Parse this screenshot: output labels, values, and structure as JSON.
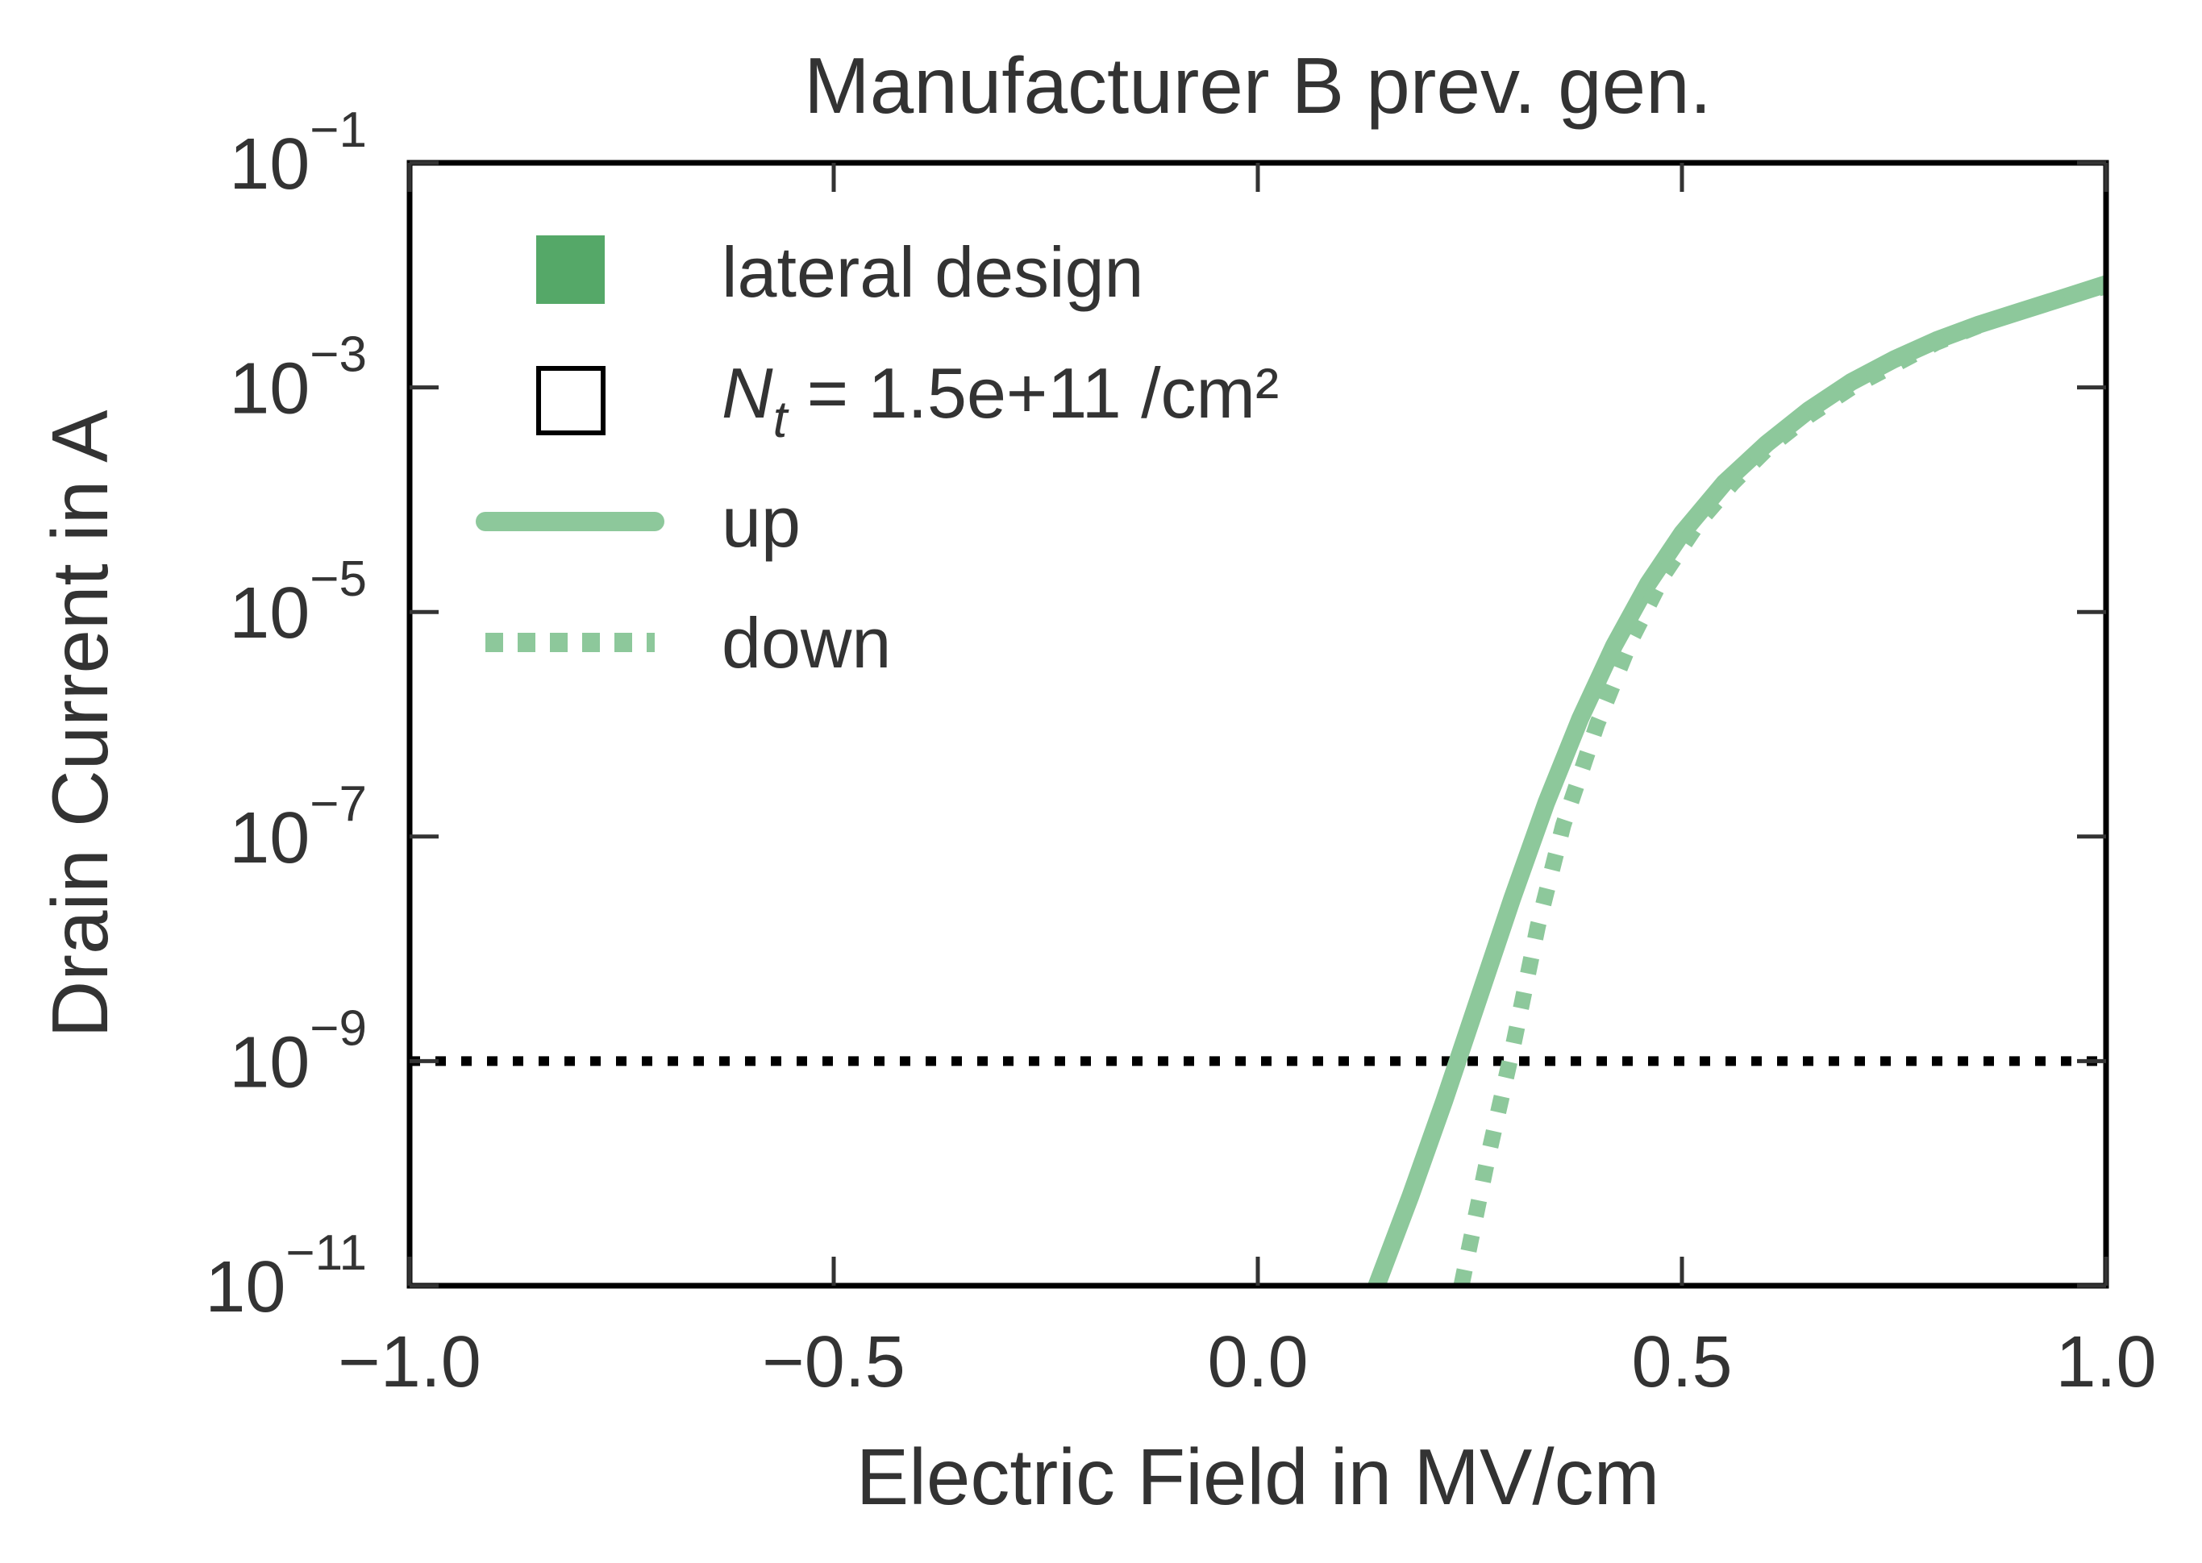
{
  "chart_data": {
    "type": "line",
    "title": "Manufacturer B prev. gen.",
    "xlabel": "Electric Field in MV/cm",
    "ylabel": "Drain Current in A",
    "xlim": [
      -1.0,
      1.0
    ],
    "ylim_log10": [
      -11,
      -1
    ],
    "y_scale": "log",
    "x_ticks": [
      {
        "value": -1.0,
        "label": "−1.0"
      },
      {
        "value": -0.5,
        "label": "−0.5"
      },
      {
        "value": 0.0,
        "label": "0.0"
      },
      {
        "value": 0.5,
        "label": "0.5"
      },
      {
        "value": 1.0,
        "label": "1.0"
      }
    ],
    "y_ticks": [
      {
        "exp": -11,
        "base": "10",
        "sup": "−11"
      },
      {
        "exp": -9,
        "base": "10",
        "sup": "−9"
      },
      {
        "exp": -7,
        "base": "10",
        "sup": "−7"
      },
      {
        "exp": -5,
        "base": "10",
        "sup": "−5"
      },
      {
        "exp": -3,
        "base": "10",
        "sup": "−3"
      },
      {
        "exp": -1,
        "base": "10",
        "sup": "−1"
      }
    ],
    "legend": {
      "position": "top-left",
      "entries": [
        {
          "kind": "filled-square",
          "label": "lateral design"
        },
        {
          "kind": "open-square",
          "label_main": "N",
          "label_sub": "t",
          "label_rest": " = 1.5e+11 /cm²"
        },
        {
          "kind": "solid-line",
          "label": "up"
        },
        {
          "kind": "dotted-line",
          "label": "down"
        }
      ]
    },
    "colors": {
      "series": "#8dc89b",
      "marker_fill": "#55a868",
      "threshold": "#000000",
      "text": "#333333"
    },
    "threshold_line": {
      "log10_current": -9,
      "style": "dotted"
    },
    "series": [
      {
        "name": "up",
        "style": "solid",
        "x": [
          0.14,
          0.18,
          0.22,
          0.26,
          0.3,
          0.34,
          0.38,
          0.42,
          0.46,
          0.5,
          0.55,
          0.6,
          0.65,
          0.7,
          0.75,
          0.8,
          0.85,
          0.9,
          0.95,
          1.0
        ],
        "log10_y": [
          -11.0,
          -10.2,
          -9.35,
          -8.45,
          -7.55,
          -6.7,
          -5.95,
          -5.3,
          -4.75,
          -4.3,
          -3.85,
          -3.5,
          -3.2,
          -2.95,
          -2.75,
          -2.58,
          -2.44,
          -2.32,
          -2.2,
          -2.08
        ]
      },
      {
        "name": "down",
        "style": "dotted",
        "x": [
          0.24,
          0.27,
          0.3,
          0.33,
          0.36,
          0.4,
          0.44,
          0.48,
          0.52,
          0.56,
          0.6,
          0.65,
          0.7,
          0.75,
          0.8,
          0.85,
          0.9,
          0.95,
          1.0
        ],
        "log10_y": [
          -11.0,
          -9.9,
          -8.9,
          -7.8,
          -6.9,
          -6.0,
          -5.25,
          -4.65,
          -4.2,
          -3.85,
          -3.55,
          -3.25,
          -3.0,
          -2.8,
          -2.6,
          -2.45,
          -2.32,
          -2.2,
          -2.1
        ]
      }
    ]
  }
}
